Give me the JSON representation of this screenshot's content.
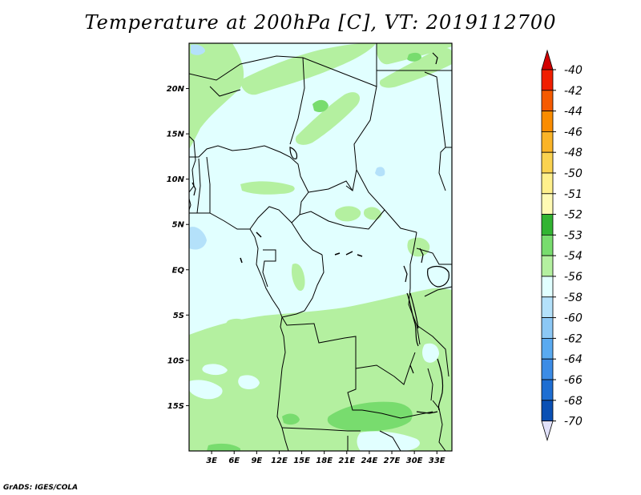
{
  "title": "Temperature at 200hPa [C], VT: 2019112700",
  "credit": "GrADS: IGES/COLA",
  "map": {
    "lon_range": [
      0,
      35
    ],
    "lat_range": [
      -20,
      25
    ],
    "lat_ticks": [
      {
        "lat": 20,
        "label": "20N"
      },
      {
        "lat": 15,
        "label": "15N"
      },
      {
        "lat": 10,
        "label": "10N"
      },
      {
        "lat": 5,
        "label": "5N"
      },
      {
        "lat": 0,
        "label": "EQ"
      },
      {
        "lat": -5,
        "label": "5S"
      },
      {
        "lat": -10,
        "label": "10S"
      },
      {
        "lat": -15,
        "label": "15S"
      }
    ],
    "lon_ticks": [
      {
        "lon": 3,
        "label": "3E"
      },
      {
        "lon": 6,
        "label": "6E"
      },
      {
        "lon": 9,
        "label": "9E"
      },
      {
        "lon": 12,
        "label": "12E"
      },
      {
        "lon": 15,
        "label": "15E"
      },
      {
        "lon": 18,
        "label": "18E"
      },
      {
        "lon": 21,
        "label": "21E"
      },
      {
        "lon": 24,
        "label": "24E"
      },
      {
        "lon": 27,
        "label": "27E"
      },
      {
        "lon": 30,
        "label": "30E"
      },
      {
        "lon": 33,
        "label": "33E"
      }
    ]
  },
  "colorbar": {
    "top_arrow_color": "#d20000",
    "bottom_arrow_color": "#e1e1fa",
    "bins": [
      {
        "label": "-40",
        "color": "#f01e00"
      },
      {
        "label": "-42",
        "color": "#f55a00"
      },
      {
        "label": "-44",
        "color": "#fa8c00"
      },
      {
        "label": "-46",
        "color": "#fab428"
      },
      {
        "label": "-48",
        "color": "#fad250"
      },
      {
        "label": "-50",
        "color": "#fff08c"
      },
      {
        "label": "-51",
        "color": "#fffab4"
      },
      {
        "label": "-52",
        "color": "#32b432"
      },
      {
        "label": "-53",
        "color": "#78dc6e"
      },
      {
        "label": "-54",
        "color": "#b4f0a0"
      },
      {
        "label": "-56",
        "color": "#e1ffff"
      },
      {
        "label": "-58",
        "color": "#b4e1fa"
      },
      {
        "label": "-60",
        "color": "#8cc8f5"
      },
      {
        "label": "-62",
        "color": "#5aaaf0"
      },
      {
        "label": "-64",
        "color": "#3c8ce6"
      },
      {
        "label": "-66",
        "color": "#1e6ed2"
      },
      {
        "label": "-68",
        "color": "#0a50b4"
      },
      {
        "label": "-70",
        "color": "#0a0a78"
      }
    ]
  }
}
